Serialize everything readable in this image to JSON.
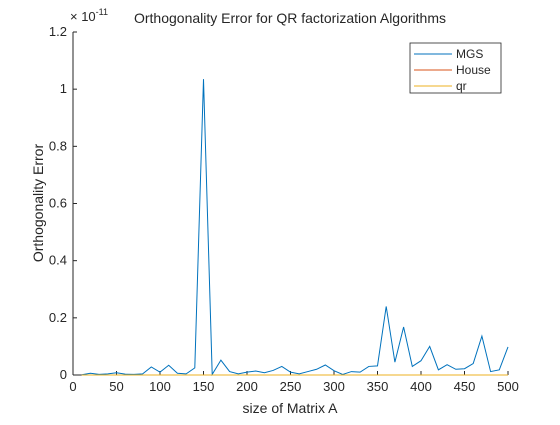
{
  "chart_data": {
    "type": "line",
    "title": "Orthogonality Error for QR factorization Algorithms",
    "xlabel": "size of Matrix A",
    "ylabel": "Orthogonality Error",
    "y_exponent_label": "× 10",
    "y_exponent_power": "-11",
    "xlim": [
      0,
      500
    ],
    "ylim": [
      0,
      1.2
    ],
    "x_ticks": [
      0,
      50,
      100,
      150,
      200,
      250,
      300,
      350,
      400,
      450,
      500
    ],
    "x_tick_labels": [
      "0",
      "50",
      "100",
      "150",
      "200",
      "250",
      "300",
      "350",
      "400",
      "450",
      "500"
    ],
    "y_ticks": [
      0,
      0.2,
      0.4,
      0.6,
      0.8,
      1,
      1.2
    ],
    "y_tick_labels": [
      "0",
      "0.2",
      "0.4",
      "0.6",
      "0.8",
      "1",
      "1.2"
    ],
    "grid": false,
    "legend_position": "top-right",
    "x": [
      10,
      20,
      30,
      40,
      50,
      60,
      70,
      80,
      90,
      100,
      110,
      120,
      130,
      140,
      150,
      160,
      170,
      180,
      190,
      200,
      210,
      220,
      230,
      240,
      250,
      260,
      270,
      280,
      290,
      300,
      310,
      320,
      330,
      340,
      350,
      360,
      370,
      380,
      390,
      400,
      410,
      420,
      430,
      440,
      450,
      460,
      470,
      480,
      490,
      500
    ],
    "series": [
      {
        "name": "MGS",
        "color": "#0072BD",
        "values": [
          0.001,
          0.006,
          0.002,
          0.004,
          0.008,
          0.003,
          0.002,
          0.004,
          0.028,
          0.01,
          0.034,
          0.006,
          0.004,
          0.025,
          1.035,
          0.002,
          0.052,
          0.012,
          0.004,
          0.01,
          0.014,
          0.008,
          0.016,
          0.03,
          0.01,
          0.004,
          0.012,
          0.02,
          0.035,
          0.015,
          0.002,
          0.012,
          0.01,
          0.03,
          0.032,
          0.24,
          0.045,
          0.168,
          0.03,
          0.05,
          0.1,
          0.018,
          0.036,
          0.02,
          0.022,
          0.04,
          0.136,
          0.012,
          0.018,
          0.098
        ]
      },
      {
        "name": "House",
        "color": "#D95319",
        "values": [
          0,
          0,
          0,
          0,
          0,
          0,
          0,
          0,
          0,
          0,
          0,
          0,
          0,
          0,
          0,
          0,
          0,
          0,
          0,
          0,
          0,
          0,
          0,
          0,
          0,
          0,
          0,
          0,
          0,
          0,
          0,
          0,
          0,
          0,
          0,
          0,
          0,
          0,
          0,
          0,
          0,
          0,
          0,
          0,
          0,
          0,
          0,
          0,
          0,
          0
        ]
      },
      {
        "name": "qr",
        "color": "#EDB120",
        "values": [
          0,
          0,
          0,
          0,
          0,
          0,
          0,
          0,
          0,
          0,
          0,
          0,
          0,
          0,
          0,
          0,
          0,
          0,
          0,
          0,
          0,
          0,
          0,
          0,
          0,
          0,
          0,
          0,
          0,
          0,
          0,
          0,
          0,
          0,
          0,
          0,
          0,
          0,
          0,
          0,
          0,
          0,
          0,
          0,
          0,
          0,
          0,
          0,
          0,
          0
        ]
      }
    ]
  }
}
